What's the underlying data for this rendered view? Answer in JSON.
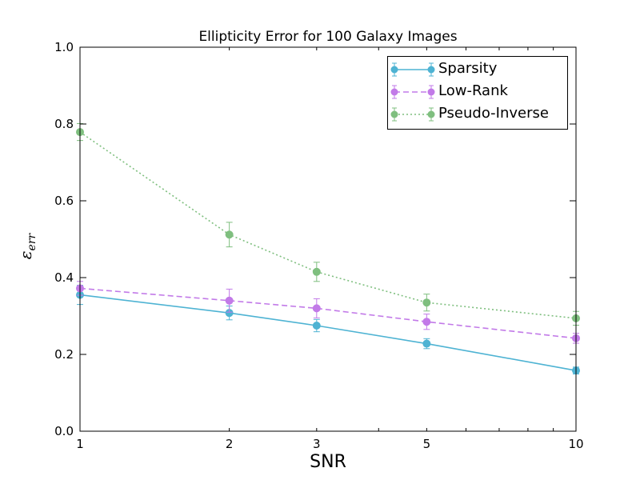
{
  "chart_data": {
    "type": "line",
    "title": "Ellipticity Error for 100 Galaxy Images",
    "xlabel": "SNR",
    "ylabel": "ε",
    "ylabel_sub": "err",
    "x_scale": "log",
    "xlim": [
      1,
      10
    ],
    "ylim": [
      0.0,
      1.0
    ],
    "x_ticks": [
      1,
      2,
      3,
      5,
      10
    ],
    "x_tick_labels": [
      "1",
      "2",
      "3",
      "5",
      "10"
    ],
    "y_ticks": [
      0.0,
      0.2,
      0.4,
      0.6,
      0.8,
      1.0
    ],
    "y_tick_labels": [
      "0.0",
      "0.2",
      "0.4",
      "0.6",
      "0.8",
      "1.0"
    ],
    "legend_position": "top-right",
    "x": [
      1,
      2,
      3,
      5,
      10
    ],
    "series": [
      {
        "name": "Sparsity",
        "color": "#4eb3d3",
        "style": "solid",
        "values": [
          0.355,
          0.308,
          0.275,
          0.228,
          0.158
        ],
        "errors": [
          0.025,
          0.018,
          0.016,
          0.013,
          0.009
        ]
      },
      {
        "name": "Low-Rank",
        "color": "#c27ae8",
        "style": "dashed",
        "values": [
          0.372,
          0.34,
          0.32,
          0.285,
          0.242
        ],
        "errors": [
          0.018,
          0.03,
          0.025,
          0.02,
          0.013
        ]
      },
      {
        "name": "Pseudo-Inverse",
        "color": "#7fbf7f",
        "style": "dotted",
        "values": [
          0.779,
          0.512,
          0.415,
          0.335,
          0.294
        ],
        "errors": [
          0.022,
          0.032,
          0.025,
          0.022,
          0.018
        ]
      }
    ]
  }
}
